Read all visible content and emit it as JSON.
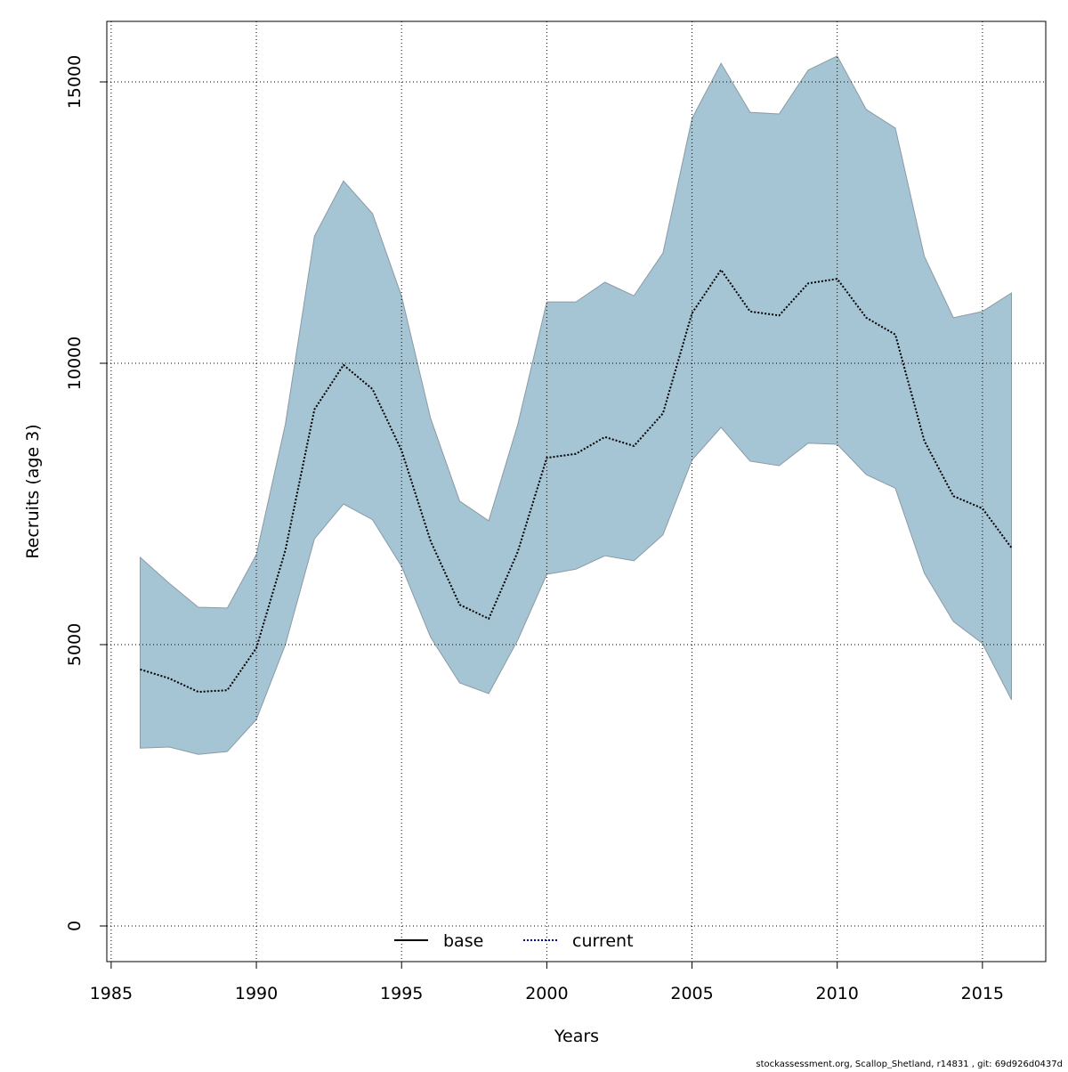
{
  "chart_data": {
    "type": "line-band",
    "x_label": "Years",
    "y_label": "Recruits (age 3)",
    "footer": "stockassessment.org, Scallop_Shetland, r14831 , git: 69d926d0437d",
    "x": [
      1986,
      1987,
      1988,
      1989,
      1990,
      1991,
      1992,
      1993,
      1994,
      1995,
      1996,
      1997,
      1998,
      1999,
      2000,
      2001,
      2002,
      2003,
      2004,
      2005,
      2006,
      2007,
      2008,
      2009,
      2010,
      2011,
      2012,
      2013,
      2014,
      2015,
      2016
    ],
    "series": [
      {
        "name": "current",
        "color": "#000000",
        "band_color": "#a5c4d4",
        "band_edge": "#8a9ba6",
        "values": [
          4560,
          4400,
          4160,
          4190,
          4940,
          6680,
          9180,
          9970,
          9540,
          8450,
          6840,
          5710,
          5460,
          6650,
          8320,
          8390,
          8690,
          8530,
          9110,
          10890,
          11660,
          10920,
          10850,
          11420,
          11500,
          10810,
          10510,
          8620,
          7640,
          7420,
          6720
        ],
        "lower": [
          3160,
          3180,
          3050,
          3100,
          3670,
          5000,
          6880,
          7500,
          7220,
          6390,
          5130,
          4320,
          4130,
          5080,
          6250,
          6340,
          6580,
          6490,
          6950,
          8280,
          8860,
          8260,
          8180,
          8580,
          8560,
          8020,
          7780,
          6270,
          5410,
          5020,
          4020
        ],
        "upper": [
          6550,
          6090,
          5665,
          5650,
          6600,
          8920,
          12260,
          13240,
          12660,
          11190,
          9020,
          7550,
          7200,
          8910,
          11090,
          11090,
          11440,
          11200,
          11960,
          14350,
          15330,
          14460,
          14430,
          15210,
          15460,
          14510,
          14180,
          11900,
          10810,
          10920,
          11250
        ]
      }
    ],
    "legend": [
      {
        "name": "base",
        "color": "#000000",
        "dash": "solid"
      },
      {
        "name": "current",
        "color": "#00008b",
        "dash": "dotted"
      }
    ],
    "xlim": [
      1984.85,
      2017.18
    ],
    "ylim": [
      -633,
      16076
    ],
    "xticks": [
      1985,
      1990,
      1995,
      2000,
      2005,
      2010,
      2015
    ],
    "yticks": [
      0,
      5000,
      10000,
      15000
    ],
    "grid": true
  }
}
